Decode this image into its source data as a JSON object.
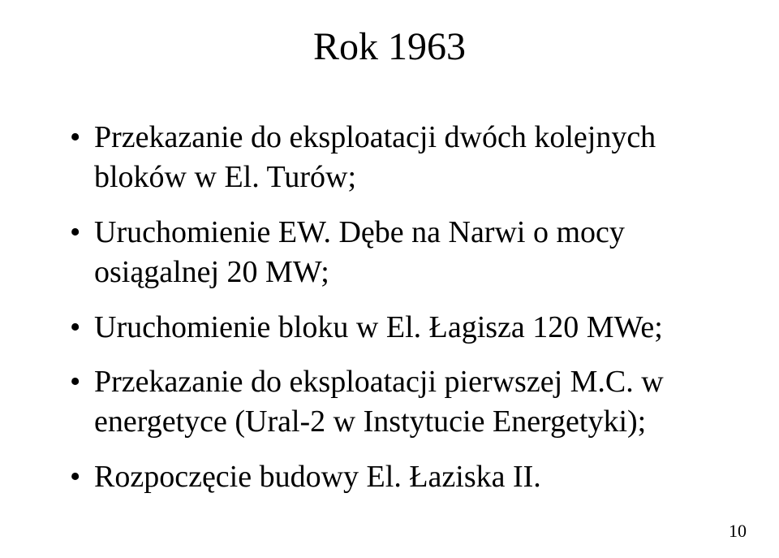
{
  "title": "Rok 1963",
  "bullets": [
    "Przekazanie do eksploatacji dwóch kolejnych bloków w El. Turów;",
    " Uruchomienie EW. Dębe na Narwi o mocy osiągalnej 20 MW;",
    "Uruchomienie bloku w El. Łagisza 120 MWe;",
    "Przekazanie do eksploatacji pierwszej M.C. w energetyce (Ural-2 w Instytucie Energetyki);",
    "Rozpoczęcie budowy El. Łaziska II."
  ],
  "page_number": "10",
  "colors": {
    "background": "#ffffff",
    "text": "#000000"
  },
  "typography": {
    "font_family": "Times New Roman",
    "title_fontsize_pt": 36,
    "body_fontsize_pt": 29
  }
}
